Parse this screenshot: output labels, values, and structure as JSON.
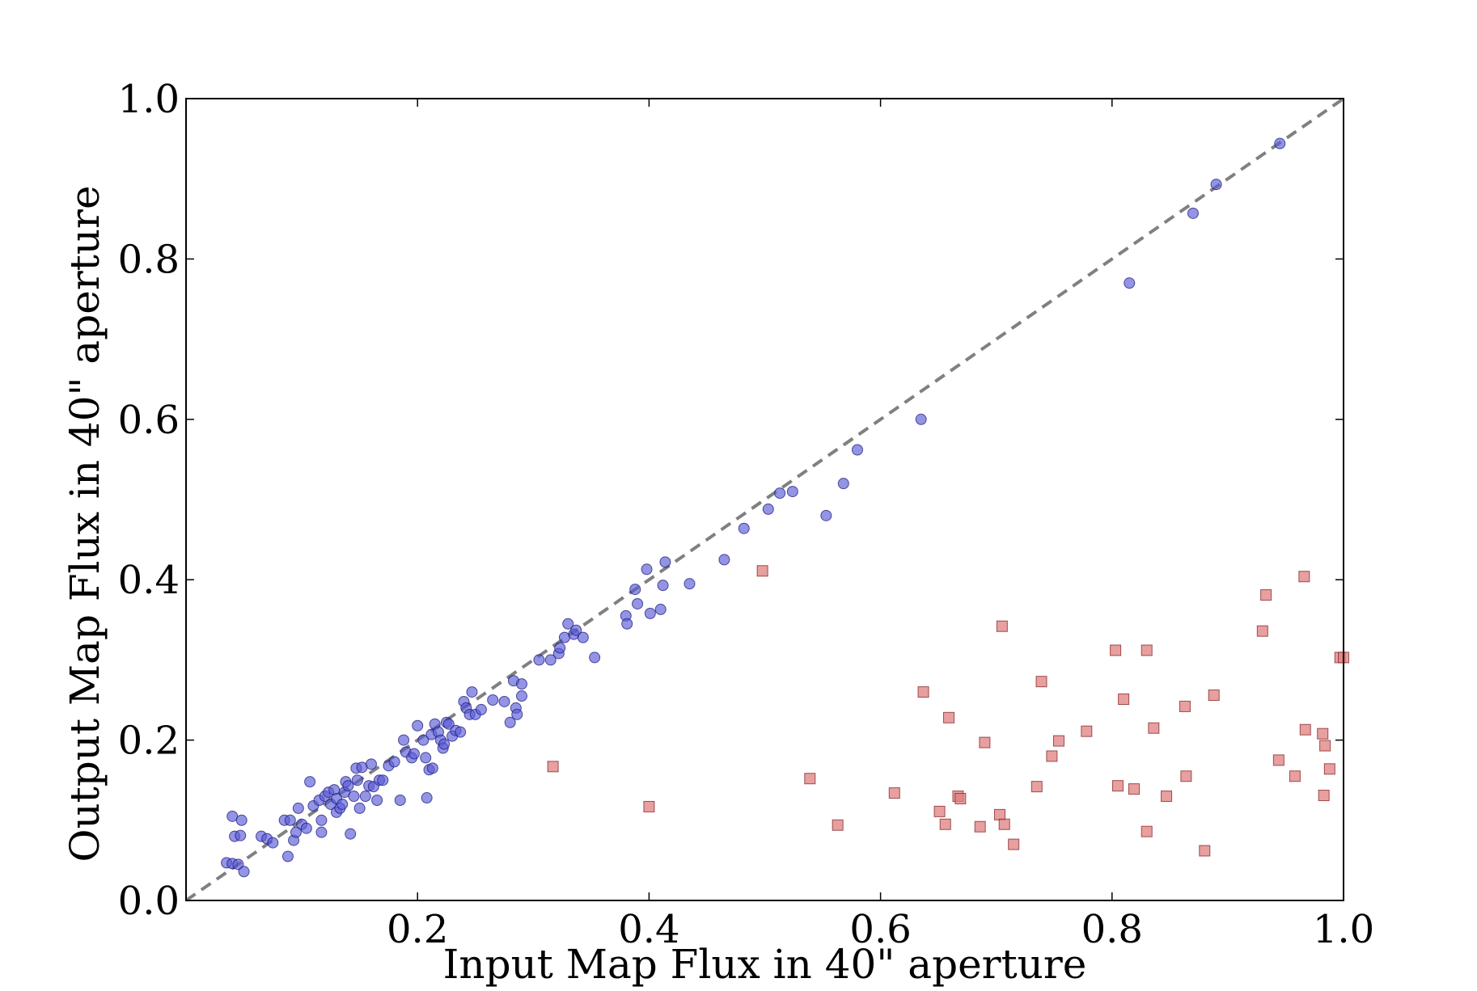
{
  "chart_data": {
    "type": "scatter",
    "title": "",
    "xlabel": "Input Map Flux in 40\" aperture",
    "ylabel": "Output Map  Flux in 40\" aperture",
    "xlim": [
      0.0,
      1.0
    ],
    "ylim": [
      0.0,
      1.0
    ],
    "xticks": [
      "0.2",
      "0.4",
      "0.6",
      "0.8",
      "1.0"
    ],
    "yticks": [
      "0.0",
      "0.2",
      "0.4",
      "0.6",
      "0.8",
      "1.0"
    ],
    "grid": false,
    "legend": "none",
    "reference_line": {
      "style": "dashed",
      "color": "#808080",
      "from": [
        0,
        0
      ],
      "to": [
        1,
        1
      ]
    },
    "series": [
      {
        "marker": "circle",
        "color": "#5b5bd6",
        "points": [
          [
            0.035,
            0.047
          ],
          [
            0.04,
            0.046
          ],
          [
            0.045,
            0.045
          ],
          [
            0.05,
            0.036
          ],
          [
            0.04,
            0.105
          ],
          [
            0.048,
            0.1
          ],
          [
            0.042,
            0.08
          ],
          [
            0.047,
            0.081
          ],
          [
            0.065,
            0.08
          ],
          [
            0.07,
            0.077
          ],
          [
            0.075,
            0.072
          ],
          [
            0.085,
            0.1
          ],
          [
            0.09,
            0.1
          ],
          [
            0.093,
            0.075
          ],
          [
            0.088,
            0.055
          ],
          [
            0.095,
            0.085
          ],
          [
            0.1,
            0.095
          ],
          [
            0.097,
            0.115
          ],
          [
            0.104,
            0.09
          ],
          [
            0.107,
            0.148
          ],
          [
            0.11,
            0.118
          ],
          [
            0.115,
            0.125
          ],
          [
            0.117,
            0.1
          ],
          [
            0.117,
            0.085
          ],
          [
            0.12,
            0.13
          ],
          [
            0.123,
            0.135
          ],
          [
            0.125,
            0.12
          ],
          [
            0.128,
            0.138
          ],
          [
            0.13,
            0.127
          ],
          [
            0.13,
            0.11
          ],
          [
            0.133,
            0.115
          ],
          [
            0.135,
            0.12
          ],
          [
            0.137,
            0.135
          ],
          [
            0.138,
            0.148
          ],
          [
            0.14,
            0.143
          ],
          [
            0.142,
            0.083
          ],
          [
            0.145,
            0.13
          ],
          [
            0.147,
            0.165
          ],
          [
            0.148,
            0.15
          ],
          [
            0.15,
            0.115
          ],
          [
            0.152,
            0.166
          ],
          [
            0.155,
            0.13
          ],
          [
            0.158,
            0.143
          ],
          [
            0.16,
            0.17
          ],
          [
            0.162,
            0.142
          ],
          [
            0.165,
            0.125
          ],
          [
            0.167,
            0.15
          ],
          [
            0.17,
            0.15
          ],
          [
            0.175,
            0.168
          ],
          [
            0.18,
            0.173
          ],
          [
            0.185,
            0.125
          ],
          [
            0.188,
            0.2
          ],
          [
            0.19,
            0.185
          ],
          [
            0.195,
            0.178
          ],
          [
            0.197,
            0.183
          ],
          [
            0.2,
            0.218
          ],
          [
            0.205,
            0.2
          ],
          [
            0.207,
            0.178
          ],
          [
            0.208,
            0.128
          ],
          [
            0.21,
            0.163
          ],
          [
            0.212,
            0.207
          ],
          [
            0.213,
            0.165
          ],
          [
            0.215,
            0.22
          ],
          [
            0.218,
            0.21
          ],
          [
            0.22,
            0.2
          ],
          [
            0.222,
            0.19
          ],
          [
            0.223,
            0.195
          ],
          [
            0.225,
            0.222
          ],
          [
            0.227,
            0.22
          ],
          [
            0.23,
            0.205
          ],
          [
            0.233,
            0.212
          ],
          [
            0.237,
            0.21
          ],
          [
            0.24,
            0.248
          ],
          [
            0.242,
            0.24
          ],
          [
            0.245,
            0.232
          ],
          [
            0.247,
            0.26
          ],
          [
            0.25,
            0.232
          ],
          [
            0.255,
            0.238
          ],
          [
            0.265,
            0.25
          ],
          [
            0.275,
            0.248
          ],
          [
            0.28,
            0.222
          ],
          [
            0.283,
            0.274
          ],
          [
            0.285,
            0.24
          ],
          [
            0.286,
            0.232
          ],
          [
            0.29,
            0.255
          ],
          [
            0.29,
            0.27
          ],
          [
            0.305,
            0.3
          ],
          [
            0.315,
            0.3
          ],
          [
            0.322,
            0.308
          ],
          [
            0.323,
            0.315
          ],
          [
            0.327,
            0.328
          ],
          [
            0.33,
            0.345
          ],
          [
            0.335,
            0.332
          ],
          [
            0.337,
            0.337
          ],
          [
            0.343,
            0.328
          ],
          [
            0.353,
            0.303
          ],
          [
            0.38,
            0.355
          ],
          [
            0.381,
            0.345
          ],
          [
            0.388,
            0.388
          ],
          [
            0.39,
            0.37
          ],
          [
            0.398,
            0.413
          ],
          [
            0.401,
            0.358
          ],
          [
            0.41,
            0.363
          ],
          [
            0.412,
            0.393
          ],
          [
            0.414,
            0.422
          ],
          [
            0.435,
            0.395
          ],
          [
            0.465,
            0.425
          ],
          [
            0.482,
            0.464
          ],
          [
            0.503,
            0.488
          ],
          [
            0.513,
            0.508
          ],
          [
            0.524,
            0.51
          ],
          [
            0.553,
            0.48
          ],
          [
            0.568,
            0.52
          ],
          [
            0.58,
            0.562
          ],
          [
            0.635,
            0.6
          ],
          [
            0.815,
            0.77
          ],
          [
            0.87,
            0.857
          ],
          [
            0.89,
            0.893
          ],
          [
            0.945,
            0.944
          ]
        ]
      },
      {
        "marker": "square",
        "color": "#e07f7f",
        "points": [
          [
            0.317,
            0.167
          ],
          [
            0.4,
            0.117
          ],
          [
            0.498,
            0.411
          ],
          [
            0.539,
            0.152
          ],
          [
            0.563,
            0.094
          ],
          [
            0.612,
            0.134
          ],
          [
            0.637,
            0.26
          ],
          [
            0.651,
            0.111
          ],
          [
            0.656,
            0.095
          ],
          [
            0.659,
            0.228
          ],
          [
            0.667,
            0.13
          ],
          [
            0.669,
            0.127
          ],
          [
            0.686,
            0.092
          ],
          [
            0.69,
            0.197
          ],
          [
            0.703,
            0.107
          ],
          [
            0.705,
            0.342
          ],
          [
            0.707,
            0.095
          ],
          [
            0.715,
            0.07
          ],
          [
            0.735,
            0.142
          ],
          [
            0.739,
            0.273
          ],
          [
            0.748,
            0.18
          ],
          [
            0.754,
            0.199
          ],
          [
            0.778,
            0.211
          ],
          [
            0.803,
            0.312
          ],
          [
            0.805,
            0.143
          ],
          [
            0.81,
            0.251
          ],
          [
            0.819,
            0.139
          ],
          [
            0.83,
            0.086
          ],
          [
            0.83,
            0.312
          ],
          [
            0.836,
            0.215
          ],
          [
            0.847,
            0.13
          ],
          [
            0.863,
            0.242
          ],
          [
            0.864,
            0.155
          ],
          [
            0.88,
            0.062
          ],
          [
            0.888,
            0.256
          ],
          [
            0.93,
            0.336
          ],
          [
            0.933,
            0.381
          ],
          [
            0.944,
            0.175
          ],
          [
            0.958,
            0.155
          ],
          [
            0.966,
            0.404
          ],
          [
            0.967,
            0.213
          ],
          [
            0.982,
            0.208
          ],
          [
            0.983,
            0.131
          ],
          [
            0.984,
            0.193
          ],
          [
            0.988,
            0.164
          ],
          [
            0.997,
            0.303
          ],
          [
            1.0,
            0.303
          ]
        ]
      }
    ]
  }
}
